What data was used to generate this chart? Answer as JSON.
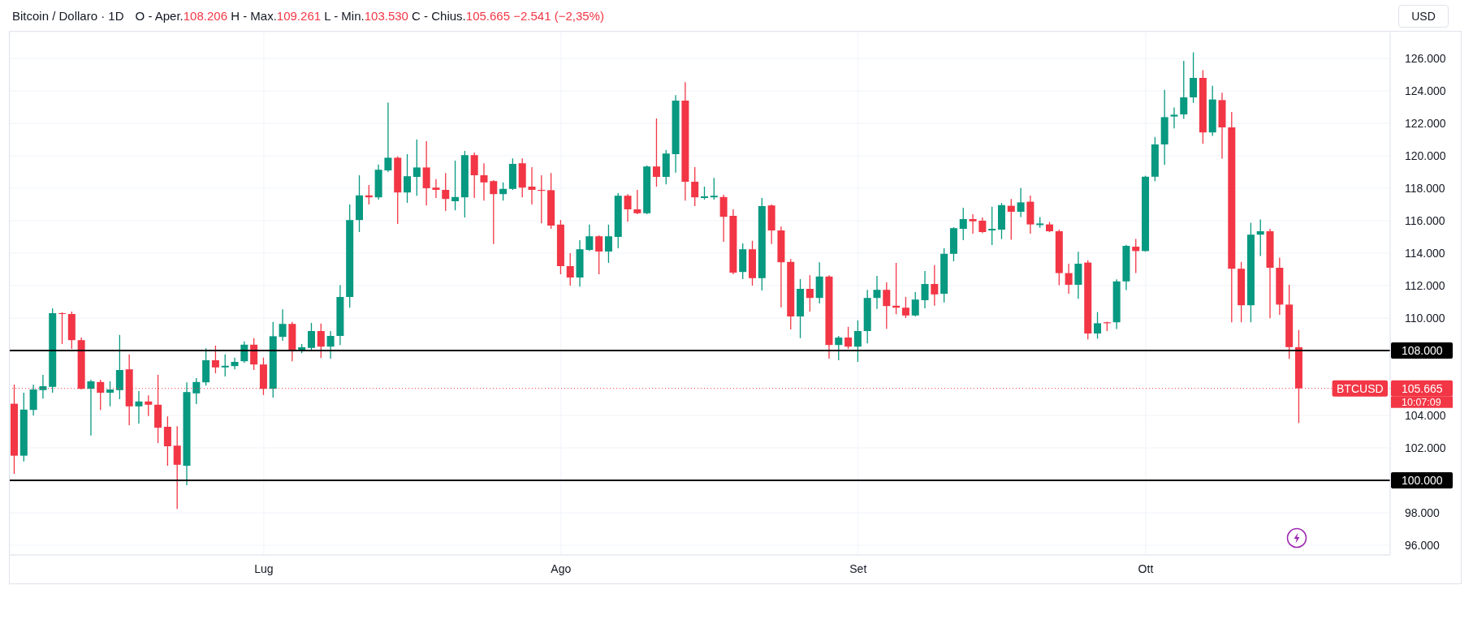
{
  "chart_data": {
    "type": "candlestick",
    "title": "Bitcoin / Dollaro · 1D",
    "subtitle": "O - Aper.108.206 H - Max.109.261 L - Min.103.530 C - Chius.105.665 −2.541 (−2,35%)",
    "ylabel": "USD",
    "categories": [
      null,
      null,
      null,
      null,
      null,
      null,
      null,
      null,
      null,
      null,
      null,
      null,
      null,
      null,
      null,
      null,
      null,
      null,
      null,
      null,
      null,
      null,
      null,
      null,
      null,
      null,
      "Lug",
      null,
      null,
      null,
      null,
      null,
      null,
      null,
      null,
      null,
      null,
      null,
      null,
      null,
      null,
      null,
      null,
      null,
      null,
      null,
      null,
      null,
      null,
      null,
      null,
      null,
      null,
      null,
      null,
      null,
      null,
      "Ago",
      null,
      null,
      null,
      null,
      null,
      null,
      null,
      null,
      null,
      null,
      null,
      null,
      null,
      null,
      null,
      null,
      null,
      null,
      null,
      null,
      null,
      null,
      null,
      null,
      null,
      null,
      null,
      null,
      null,
      null,
      "Set",
      null,
      null,
      null,
      null,
      null,
      null,
      null,
      null,
      null,
      null,
      null,
      null,
      null,
      null,
      null,
      null,
      null,
      null,
      null,
      null,
      null,
      null,
      null,
      null,
      null,
      null,
      null,
      null,
      null,
      "Ott",
      null,
      null,
      null,
      null,
      null,
      null,
      null,
      null,
      null,
      null,
      null,
      null,
      null,
      null,
      null,
      null,
      null,
      null,
      null,
      null,
      null,
      null,
      null,
      null,
      null
    ],
    "ohlc": [
      [
        104720,
        105900,
        100400,
        101520
      ],
      [
        101520,
        105400,
        101160,
        104360
      ],
      [
        104340,
        105900,
        104000,
        105600
      ],
      [
        105560,
        106500,
        105040,
        105800
      ],
      [
        105760,
        110600,
        105400,
        110300
      ],
      [
        110300,
        110360,
        108400,
        110250
      ],
      [
        110250,
        110400,
        108100,
        108640
      ],
      [
        108640,
        108800,
        105600,
        105640
      ],
      [
        105640,
        106200,
        102760,
        106100
      ],
      [
        106060,
        106200,
        104340,
        105400
      ],
      [
        105400,
        106100,
        104560,
        105600
      ],
      [
        105560,
        108960,
        105000,
        106800
      ],
      [
        106840,
        107760,
        103400,
        104560
      ],
      [
        104560,
        105500,
        103500,
        104860
      ],
      [
        104860,
        105240,
        103960,
        104660
      ],
      [
        104660,
        106500,
        102300,
        103240
      ],
      [
        103300,
        103940,
        100900,
        102100
      ],
      [
        102140,
        103340,
        98240,
        100960
      ],
      [
        100900,
        106040,
        99700,
        105440
      ],
      [
        105360,
        106300,
        104700,
        106060
      ],
      [
        106040,
        108140,
        105840,
        107400
      ],
      [
        107400,
        108300,
        106600,
        106960
      ],
      [
        106960,
        107760,
        106400,
        107060
      ],
      [
        107040,
        107560,
        106840,
        107300
      ],
      [
        107340,
        108560,
        107240,
        108360
      ],
      [
        108360,
        108760,
        106800,
        107140
      ],
      [
        107140,
        107560,
        105260,
        105640
      ],
      [
        105640,
        109760,
        105100,
        108880
      ],
      [
        108840,
        110540,
        108600,
        109640
      ],
      [
        109640,
        109760,
        107340,
        108000
      ],
      [
        108000,
        108400,
        107840,
        108200
      ],
      [
        108160,
        109700,
        107960,
        109200
      ],
      [
        109200,
        109660,
        107540,
        108240
      ],
      [
        108240,
        109200,
        107500,
        108900
      ],
      [
        108900,
        112040,
        108340,
        111300
      ],
      [
        111300,
        117000,
        110640,
        116040
      ],
      [
        116040,
        118800,
        115300,
        117560
      ],
      [
        117560,
        118200,
        117000,
        117440
      ],
      [
        117440,
        119460,
        117300,
        119140
      ],
      [
        119100,
        123280,
        119000,
        119880
      ],
      [
        119880,
        119960,
        115800,
        117740
      ],
      [
        117740,
        120100,
        117100,
        118740
      ],
      [
        118700,
        121000,
        117540,
        119280
      ],
      [
        119280,
        120900,
        116940,
        118000
      ],
      [
        118040,
        118560,
        117400,
        117900
      ],
      [
        117900,
        118940,
        116600,
        117340
      ],
      [
        117200,
        119700,
        116640,
        117460
      ],
      [
        117440,
        120300,
        116200,
        120040
      ],
      [
        120040,
        120200,
        117400,
        118800
      ],
      [
        118800,
        119540,
        117240,
        118360
      ],
      [
        118440,
        118500,
        114560,
        117640
      ],
      [
        117640,
        118360,
        117240,
        117960
      ],
      [
        117960,
        119840,
        117900,
        119500
      ],
      [
        119540,
        119840,
        117440,
        118040
      ],
      [
        118100,
        119300,
        117000,
        117900
      ],
      [
        117900,
        118800,
        115840,
        117840
      ],
      [
        117880,
        118940,
        115500,
        115700
      ],
      [
        115760,
        116040,
        112700,
        113200
      ],
      [
        113200,
        114000,
        112000,
        112500
      ],
      [
        112500,
        114800,
        111940,
        114240
      ],
      [
        114200,
        115760,
        114140,
        115040
      ],
      [
        115040,
        115100,
        112700,
        114100
      ],
      [
        114100,
        115760,
        113400,
        115040
      ],
      [
        115000,
        117700,
        114300,
        117540
      ],
      [
        117540,
        117640,
        115940,
        116700
      ],
      [
        116700,
        117900,
        116400,
        116460
      ],
      [
        116460,
        119400,
        116400,
        119340
      ],
      [
        119340,
        122300,
        118100,
        118700
      ],
      [
        118700,
        120360,
        118240,
        120140
      ],
      [
        120100,
        123740,
        118960,
        123400
      ],
      [
        123400,
        124540,
        117240,
        118400
      ],
      [
        118400,
        119300,
        116900,
        117440
      ],
      [
        117400,
        118100,
        117300,
        117500
      ],
      [
        117440,
        118640,
        117300,
        117540
      ],
      [
        117460,
        117600,
        114700,
        116240
      ],
      [
        116300,
        116700,
        112700,
        112800
      ],
      [
        112840,
        114600,
        112400,
        114240
      ],
      [
        114240,
        114760,
        112000,
        112460
      ],
      [
        112460,
        117400,
        111700,
        116900
      ],
      [
        116940,
        117000,
        114560,
        115400
      ],
      [
        115400,
        115640,
        110660,
        113440
      ],
      [
        113460,
        113640,
        109300,
        110100
      ],
      [
        110100,
        112400,
        108760,
        111800
      ],
      [
        111800,
        112640,
        110400,
        111240
      ],
      [
        111240,
        113440,
        110900,
        112560
      ],
      [
        112560,
        112640,
        107500,
        108340
      ],
      [
        108340,
        108900,
        107400,
        108800
      ],
      [
        108800,
        109460,
        108100,
        108240
      ],
      [
        108240,
        109860,
        107300,
        109200
      ],
      [
        109200,
        111740,
        108440,
        111240
      ],
      [
        111240,
        112600,
        110560,
        111740
      ],
      [
        111740,
        112200,
        109340,
        110740
      ],
      [
        110760,
        113400,
        110240,
        110640
      ],
      [
        110640,
        111300,
        110000,
        110160
      ],
      [
        110160,
        111600,
        110100,
        111140
      ],
      [
        111100,
        112900,
        110600,
        112100
      ],
      [
        112100,
        113260,
        110760,
        111460
      ],
      [
        111500,
        114300,
        110960,
        113960
      ],
      [
        113960,
        115600,
        113500,
        115540
      ],
      [
        115500,
        116800,
        114800,
        116100
      ],
      [
        116100,
        116400,
        115200,
        115960
      ],
      [
        116000,
        116200,
        115240,
        115300
      ],
      [
        115400,
        116860,
        114500,
        115500
      ],
      [
        115450,
        117090,
        114870,
        116960
      ],
      [
        116920,
        117340,
        114820,
        116550
      ],
      [
        116550,
        118010,
        116230,
        117130
      ],
      [
        117170,
        117550,
        115200,
        115770
      ],
      [
        115730,
        116230,
        115560,
        115830
      ],
      [
        115770,
        115920,
        115290,
        115350
      ],
      [
        115350,
        115450,
        112030,
        112770
      ],
      [
        112770,
        113350,
        111500,
        112050
      ],
      [
        112050,
        114090,
        111190,
        113350
      ],
      [
        113420,
        113560,
        108690,
        109050
      ],
      [
        109050,
        110370,
        108730,
        109680
      ],
      [
        109740,
        109780,
        109200,
        109680
      ],
      [
        109740,
        112390,
        109320,
        112260
      ],
      [
        112260,
        114510,
        111720,
        114450
      ],
      [
        114400,
        114870,
        112770,
        114130
      ],
      [
        114130,
        118770,
        114090,
        118710
      ],
      [
        118710,
        121160,
        118430,
        120700
      ],
      [
        120700,
        124060,
        119440,
        122380
      ],
      [
        122420,
        122970,
        121690,
        122530
      ],
      [
        122550,
        125850,
        122280,
        123600
      ],
      [
        123600,
        126370,
        123260,
        124800
      ],
      [
        124800,
        125280,
        120740,
        121440
      ],
      [
        121440,
        124310,
        121230,
        123470
      ],
      [
        123430,
        123890,
        119820,
        121750
      ],
      [
        121750,
        122700,
        109740,
        113040
      ],
      [
        113040,
        113460,
        109740,
        110790
      ],
      [
        110790,
        115870,
        109740,
        115140
      ],
      [
        115140,
        116080,
        113820,
        115350
      ],
      [
        115350,
        115500,
        109990,
        113100
      ],
      [
        113100,
        113730,
        110200,
        110830
      ],
      [
        110830,
        112050,
        107480,
        108210
      ],
      [
        108206,
        109261,
        103530,
        105665
      ],
      null,
      null,
      null,
      null,
      null,
      null,
      null,
      null,
      null
    ],
    "colors": [
      "#f23645",
      "#089981",
      "#089981",
      "#089981",
      "#089981",
      "#f23645",
      "#f23645",
      "#f23645",
      "#089981",
      "#f23645",
      "#089981",
      "#089981",
      "#f23645",
      "#089981",
      "#f23645",
      "#f23645",
      "#f23645",
      "#f23645",
      "#089981",
      "#089981",
      "#089981",
      "#f23645",
      "#089981",
      "#089981",
      "#089981",
      "#f23645",
      "#f23645",
      "#089981",
      "#089981",
      "#f23645",
      "#089981",
      "#089981",
      "#f23645",
      "#089981",
      "#089981",
      "#089981",
      "#089981",
      "#f23645",
      "#089981",
      "#089981",
      "#f23645",
      "#089981",
      "#089981",
      "#f23645",
      "#f23645",
      "#f23645",
      "#089981",
      "#089981",
      "#f23645",
      "#f23645",
      "#f23645",
      "#089981",
      "#089981",
      "#f23645",
      "#f23645",
      "#f23645",
      "#f23645",
      "#f23645",
      "#f23645",
      "#089981",
      "#089981",
      "#f23645",
      "#089981",
      "#089981",
      "#f23645",
      "#f23645",
      "#089981",
      "#f23645",
      "#089981",
      "#089981",
      "#f23645",
      "#f23645",
      "#089981",
      "#089981",
      "#f23645",
      "#f23645",
      "#089981",
      "#f23645",
      "#089981",
      "#f23645",
      "#f23645",
      "#f23645",
      "#089981",
      "#f23645",
      "#089981",
      "#f23645",
      "#089981",
      "#f23645",
      "#089981",
      "#089981",
      "#089981",
      "#f23645",
      "#f23645",
      "#f23645",
      "#089981",
      "#089981",
      "#f23645",
      "#089981",
      "#089981",
      "#089981",
      "#f23645",
      "#f23645",
      "#089981",
      "#089981",
      "#f23645",
      "#089981",
      "#f23645",
      "#089981",
      "#f23645",
      "#f23645",
      "#f23645",
      "#089981",
      "#f23645",
      "#089981",
      "#f23645",
      "#089981",
      "#089981",
      "#f23645",
      "#089981",
      "#089981",
      "#089981",
      "#089981",
      "#089981",
      "#089981",
      "#f23645",
      "#089981",
      "#f23645",
      "#f23645",
      "#f23645",
      "#089981",
      "#089981",
      "#f23645",
      "#f23645",
      "#f23645",
      "#f23645",
      null,
      null,
      null,
      null,
      null,
      null,
      null,
      null,
      null
    ],
    "ylim": [
      95400,
      127600
    ],
    "yticks": [
      {
        "value": 96000,
        "label": "96.000"
      },
      {
        "value": 98000,
        "label": "98.000"
      },
      {
        "value": 102000,
        "label": "102.000"
      },
      {
        "value": 104000,
        "label": "104.000"
      },
      {
        "value": 110000,
        "label": "110.000"
      },
      {
        "value": 112000,
        "label": "112.000"
      },
      {
        "value": 114000,
        "label": "114.000"
      },
      {
        "value": 116000,
        "label": "116.000"
      },
      {
        "value": 118000,
        "label": "118.000"
      },
      {
        "value": 120000,
        "label": "120.000"
      },
      {
        "value": 122000,
        "label": "122.000"
      },
      {
        "value": 124000,
        "label": "124.000"
      },
      {
        "value": 126000,
        "label": "126.000"
      }
    ],
    "grid": true,
    "ref_lines": [
      {
        "axis": "y",
        "value": 108000,
        "label": "108.000",
        "color": "#000000"
      },
      {
        "axis": "y",
        "value": 100000,
        "label": "100.000",
        "color": "#000000"
      },
      {
        "axis": "y",
        "value": 105665,
        "label": "105.665",
        "color": "#f23645",
        "line_style": "dotted"
      }
    ],
    "annotations": [
      "BTCUSD",
      "10:07:09"
    ]
  }
}
